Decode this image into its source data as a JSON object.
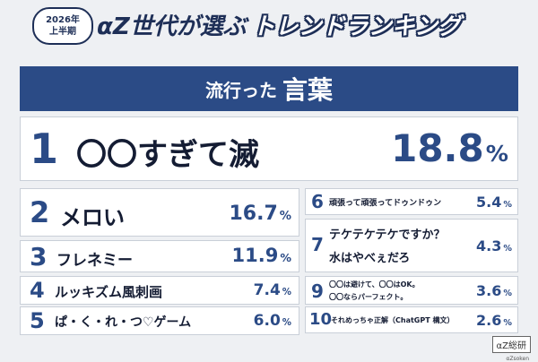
{
  "header": {
    "badge_year": "2026年",
    "badge_half": "上半期",
    "title_main": "αZ世代が選ぶ",
    "title_accent": "トレンドランキング"
  },
  "banner": {
    "prefix": "流行った",
    "main": "言葉"
  },
  "ranks": [
    {
      "rank": "1",
      "word": "〇〇すぎて滅",
      "value": "18.8"
    },
    {
      "rank": "2",
      "word": "メロい",
      "value": "16.7"
    },
    {
      "rank": "3",
      "word": "フレネミー",
      "value": "11.9"
    },
    {
      "rank": "4",
      "word": "ルッキズム風刺画",
      "value": "7.4"
    },
    {
      "rank": "5",
      "word": "ぱ・く・れ・つ♡ゲーム",
      "value": "6.0"
    },
    {
      "rank": "6",
      "word": "頑張って頑張ってドゥンドゥン",
      "value": "5.4"
    },
    {
      "rank": "7",
      "word_line1": "テケテケテケですか？",
      "word_line2": "水はやべぇだろ",
      "value": "4.3"
    },
    {
      "rank": "9",
      "word_line1": "〇〇は避けて、〇〇はOK。",
      "word_line2": "〇〇ならパーフェクト。",
      "value": "3.6"
    },
    {
      "rank": "10",
      "word": "それめっちゃ正解（ChatGPT 構文）",
      "value": "2.6"
    }
  ],
  "percent_symbol": "%",
  "logo": {
    "mark": "αZ総研",
    "sub": "αZsoken"
  }
}
